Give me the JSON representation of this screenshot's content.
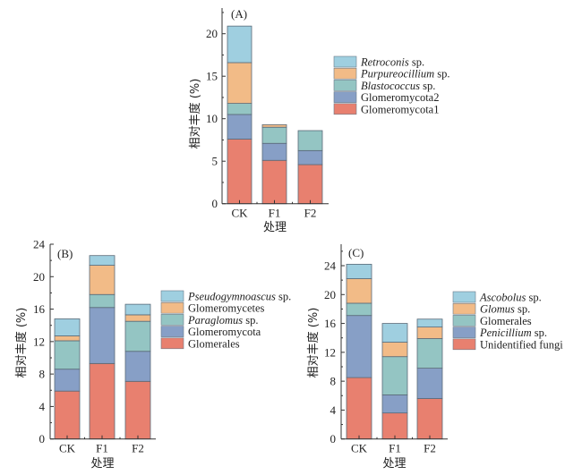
{
  "chart_data": [
    {
      "type": "bar",
      "stacked": true,
      "panel_label": "(A)",
      "title": "",
      "xlabel": "处理",
      "ylabel": "相对丰度 (%)",
      "categories": [
        "CK",
        "F1",
        "F2"
      ],
      "ylim": [
        0,
        23
      ],
      "yticks": [
        0,
        5,
        10,
        15,
        20
      ],
      "legend_position": "right",
      "series": [
        {
          "name": "Glomeromycota1",
          "italic_part": "",
          "suffix": "Glomeromycota1",
          "color": "#e8806f",
          "values": [
            7.6,
            5.1,
            4.6
          ]
        },
        {
          "name": "Glomeromycota2",
          "italic_part": "",
          "suffix": "Glomeromycota2",
          "color": "#879fc6",
          "values": [
            2.9,
            2.0,
            1.65
          ]
        },
        {
          "name": "Blastococcus sp.",
          "italic_part": "Blastococcus",
          "suffix": " sp.",
          "color": "#94c5c3",
          "values": [
            1.3,
            1.9,
            2.35
          ]
        },
        {
          "name": "Purpureocillium sp.",
          "italic_part": "Purpureocillium",
          "suffix": " sp.",
          "color": "#f2bb87",
          "values": [
            4.8,
            0.3,
            0.0
          ]
        },
        {
          "name": "Retroconis sp.",
          "italic_part": "Retroconis",
          "suffix": " sp.",
          "color": "#9fcfe0",
          "values": [
            4.3,
            0.0,
            0.0
          ]
        }
      ]
    },
    {
      "type": "bar",
      "stacked": true,
      "panel_label": "(B)",
      "title": "",
      "xlabel": "处理",
      "ylabel": "相对丰度 (%)",
      "categories": [
        "CK",
        "F1",
        "F2"
      ],
      "ylim": [
        0,
        24
      ],
      "yticks": [
        0,
        4,
        8,
        12,
        16,
        20,
        24
      ],
      "legend_position": "right",
      "series": [
        {
          "name": "Glomerales",
          "italic_part": "",
          "suffix": "Glomerales",
          "color": "#e8806f",
          "values": [
            5.9,
            9.3,
            7.1
          ]
        },
        {
          "name": "Glomeromycota",
          "italic_part": "",
          "suffix": "Glomeromycota",
          "color": "#879fc6",
          "values": [
            2.7,
            6.9,
            3.7
          ]
        },
        {
          "name": "Paraglomus sp.",
          "italic_part": "Paraglomus",
          "suffix": " sp.",
          "color": "#94c5c3",
          "values": [
            3.5,
            1.6,
            3.7
          ]
        },
        {
          "name": "Glomeromycetes",
          "italic_part": "",
          "suffix": "Glomeromycetes",
          "color": "#f2bb87",
          "values": [
            0.6,
            3.6,
            0.8
          ]
        },
        {
          "name": "Pseudogymnoascus sp.",
          "italic_part": "Pseudogymnoascus",
          "suffix": " sp.",
          "color": "#9fcfe0",
          "values": [
            2.1,
            1.2,
            1.3
          ]
        }
      ]
    },
    {
      "type": "bar",
      "stacked": true,
      "panel_label": "(C)",
      "title": "",
      "xlabel": "处理",
      "ylabel": "相对丰度 (%)",
      "categories": [
        "CK",
        "F1",
        "F2"
      ],
      "ylim": [
        0,
        27
      ],
      "yticks": [
        0,
        4,
        8,
        12,
        16,
        20,
        24
      ],
      "legend_position": "right",
      "series": [
        {
          "name": "Unidentified fungi",
          "italic_part": "",
          "suffix": "Unidentified fungi",
          "color": "#e8806f",
          "values": [
            8.5,
            3.6,
            5.6
          ]
        },
        {
          "name": "Penicillium sp.",
          "italic_part": "Penicillium",
          "suffix": " sp.",
          "color": "#879fc6",
          "values": [
            8.6,
            2.5,
            4.2
          ]
        },
        {
          "name": "Glomerales",
          "italic_part": "",
          "suffix": "Glomerales",
          "color": "#94c5c3",
          "values": [
            1.7,
            5.3,
            4.1
          ]
        },
        {
          "name": "Glomus sp.",
          "italic_part": "Glomus",
          "suffix": " sp.",
          "color": "#f2bb87",
          "values": [
            3.4,
            2.0,
            1.6
          ]
        },
        {
          "name": "Ascobolus sp.",
          "italic_part": "Ascobolus",
          "suffix": " sp.",
          "color": "#9fcfe0",
          "values": [
            2.0,
            2.6,
            1.1
          ]
        }
      ]
    }
  ]
}
